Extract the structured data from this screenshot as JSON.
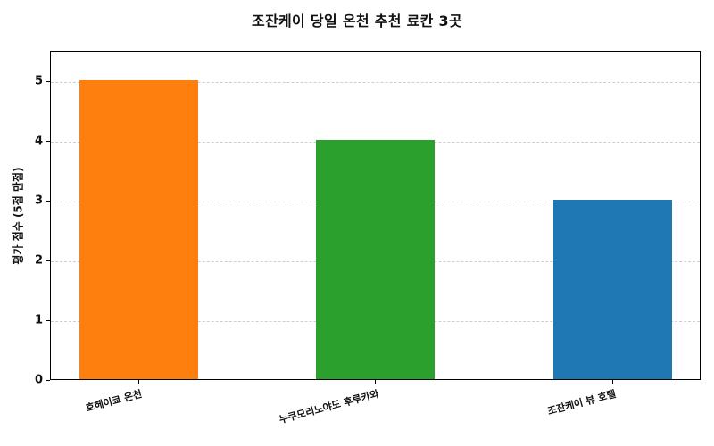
{
  "chart_data": {
    "type": "bar",
    "title": "조잔케이 당일 온천 추천 료칸 3곳",
    "xlabel": "",
    "ylabel": "평가 점수 (5점 만점)",
    "categories": [
      "호헤이쿄 온천",
      "누쿠모리노야도 후루카와",
      "조잔케이 뷰 호텔"
    ],
    "values": [
      5,
      4,
      3
    ],
    "colors": [
      "#ff7f0e",
      "#2ca02c",
      "#1f77b4"
    ],
    "ylim": [
      0,
      5.5
    ],
    "yticks": [
      0,
      1,
      2,
      3,
      4,
      5
    ],
    "grid": {
      "axis": "y",
      "style": "dashed",
      "color": "#cfcfcf"
    },
    "legend": null,
    "xtick_rotation": -15
  }
}
